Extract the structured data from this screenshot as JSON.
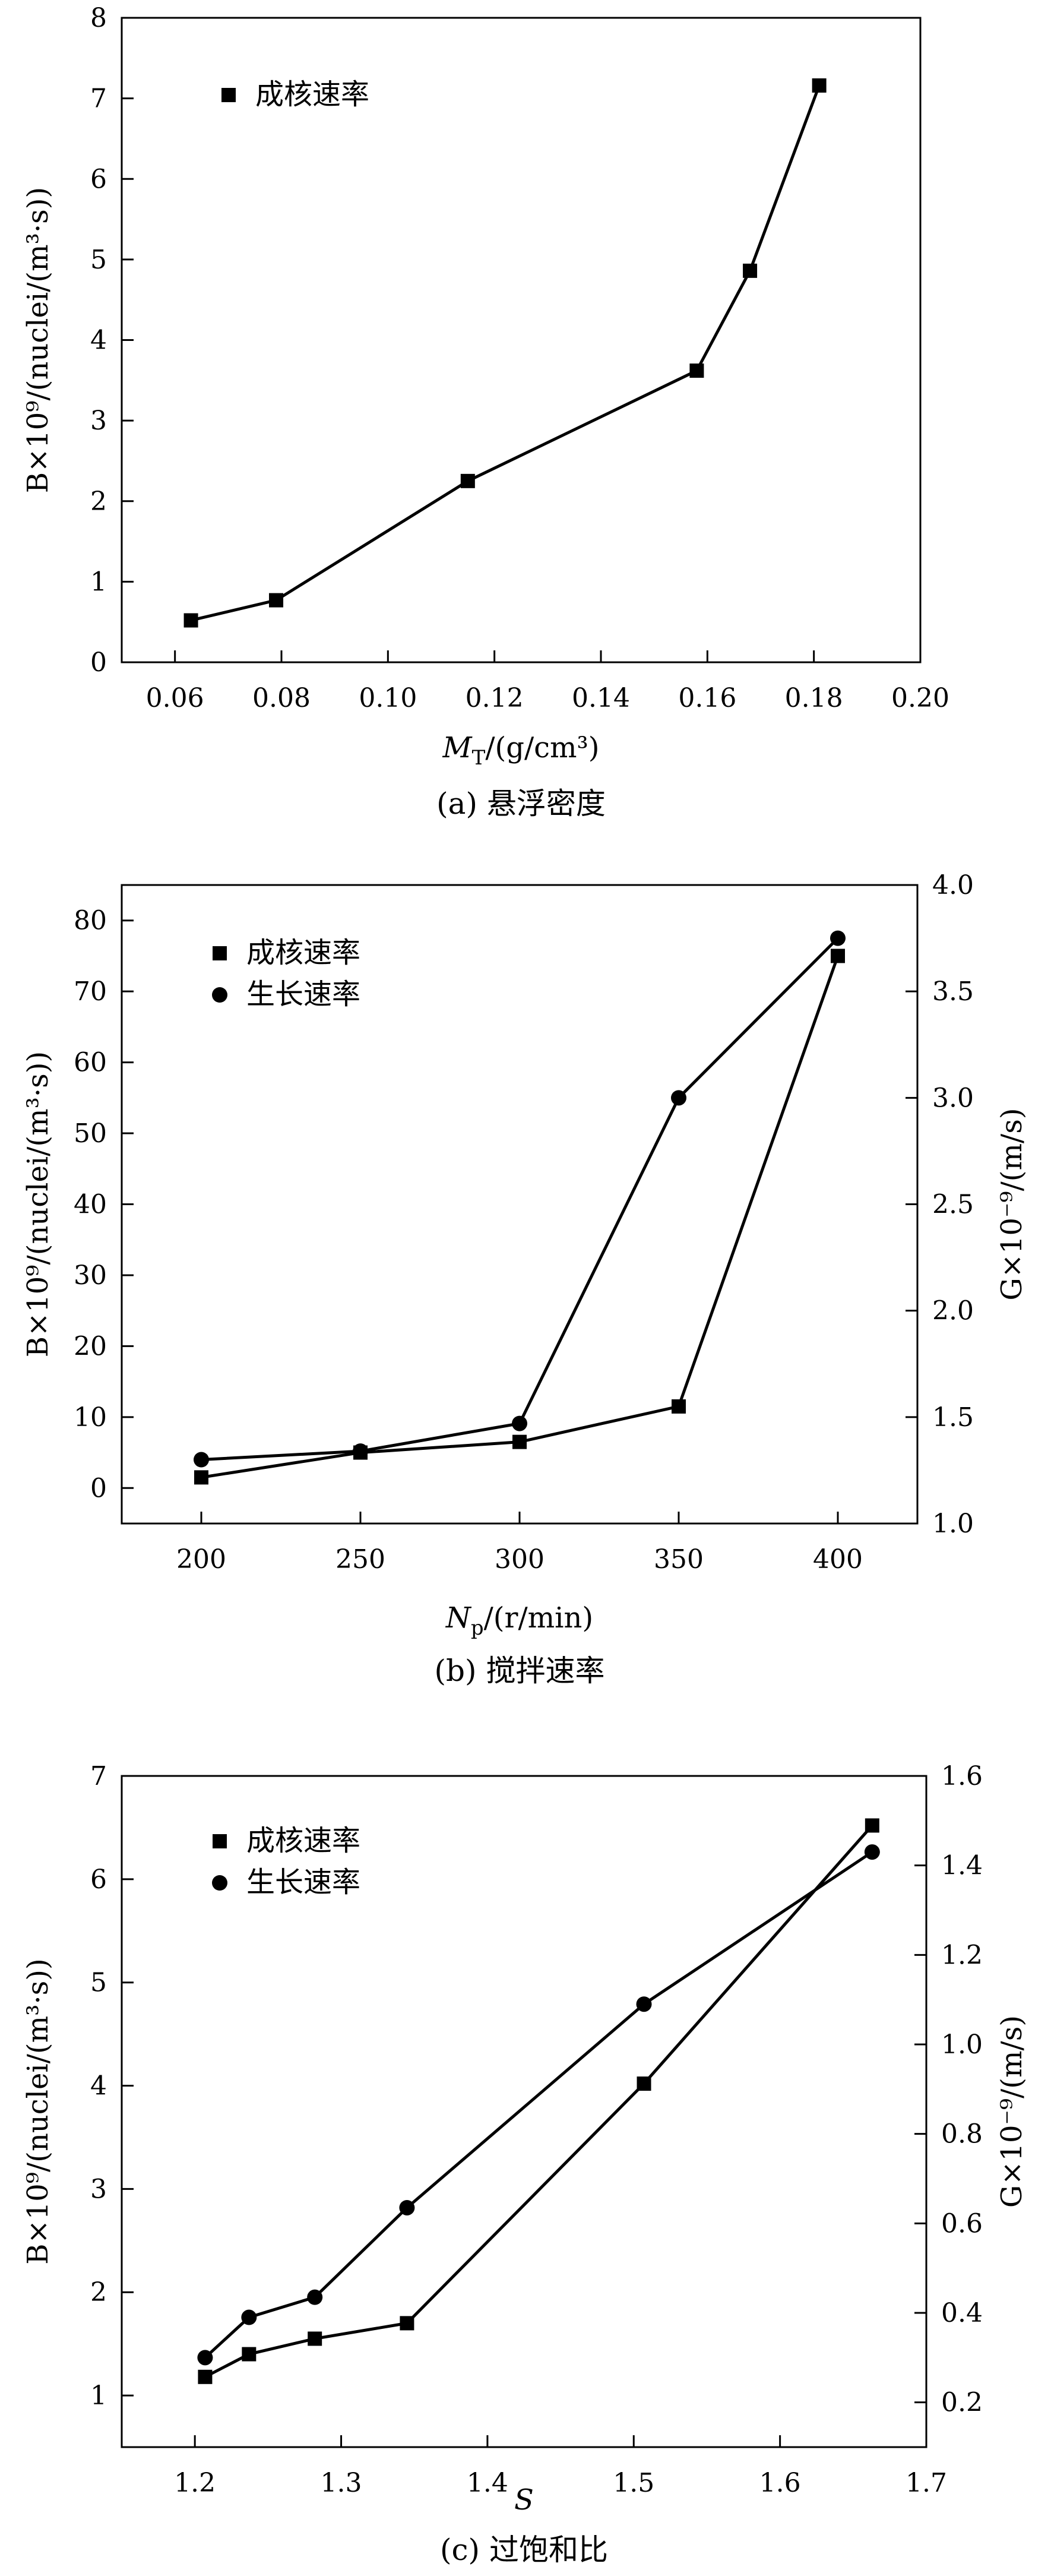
{
  "chart_data": [
    {
      "type": "line",
      "caption": "(a) 悬浮密度",
      "xlabel": {
        "var": "M",
        "sub": "T",
        "unit": "/(g/cm³)"
      },
      "ylabel_left": "B×10⁹/(nuclei/(m³·s))",
      "xlim": [
        0.05,
        0.2
      ],
      "ylim_left": [
        0,
        8
      ],
      "xticks": [
        "0.06",
        "0.08",
        "0.10",
        "0.12",
        "0.14",
        "0.16",
        "0.18",
        "0.20"
      ],
      "yticks_left": [
        "0",
        "1",
        "2",
        "3",
        "4",
        "5",
        "6",
        "7",
        "8"
      ],
      "legend": [
        "成核速率"
      ],
      "series": [
        {
          "name": "成核速率",
          "marker": "square",
          "axis": "left",
          "x": [
            0.063,
            0.079,
            0.115,
            0.158,
            0.168,
            0.181
          ],
          "values": [
            0.52,
            0.77,
            2.25,
            3.62,
            4.86,
            7.16
          ]
        }
      ]
    },
    {
      "type": "line",
      "caption": "(b) 搅拌速率",
      "xlabel": {
        "var": "N",
        "sub": "p",
        "unit": "/(r/min)"
      },
      "ylabel_left": "B×10⁹/(nuclei/(m³·s))",
      "ylabel_right": "G×10⁻⁹/(m/s)",
      "xlim": [
        175,
        425
      ],
      "ylim_left": [
        -5,
        85
      ],
      "ylim_right": [
        1.0,
        4.0
      ],
      "xticks": [
        "200",
        "250",
        "300",
        "350",
        "400"
      ],
      "yticks_left": [
        "0",
        "10",
        "20",
        "30",
        "40",
        "50",
        "60",
        "70",
        "80"
      ],
      "yticks_right": [
        "1.0",
        "1.5",
        "2.0",
        "2.5",
        "3.0",
        "3.5",
        "4.0"
      ],
      "legend": [
        "成核速率",
        "生长速率"
      ],
      "series": [
        {
          "name": "成核速率",
          "marker": "square",
          "axis": "left",
          "x": [
            200,
            250,
            300,
            350,
            400
          ],
          "values": [
            1.5,
            5.0,
            6.5,
            11.5,
            75.0
          ]
        },
        {
          "name": "生长速率",
          "marker": "circle",
          "axis": "right",
          "x": [
            200,
            250,
            300,
            350,
            400
          ],
          "values": [
            1.3,
            1.34,
            1.47,
            3.0,
            3.75
          ]
        }
      ]
    },
    {
      "type": "line",
      "caption": "(c) 过饱和比",
      "xlabel": {
        "var": "S",
        "sub": "",
        "unit": ""
      },
      "ylabel_left": "B×10⁹/(nuclei/(m³·s))",
      "ylabel_right": "G×10⁻⁹/(m/s)",
      "xlim": [
        1.15,
        1.7
      ],
      "ylim_left": [
        0.5,
        7
      ],
      "ylim_right": [
        0.1,
        1.6
      ],
      "xticks": [
        "1.2",
        "1.3",
        "1.4",
        "1.5",
        "1.6",
        "1.7"
      ],
      "yticks_left": [
        "1",
        "2",
        "3",
        "4",
        "5",
        "6",
        "7"
      ],
      "yticks_right": [
        "0.2",
        "0.4",
        "0.6",
        "0.8",
        "1.0",
        "1.2",
        "1.4",
        "1.6"
      ],
      "legend": [
        "成核速率",
        "生长速率"
      ],
      "series": [
        {
          "name": "成核速率",
          "marker": "square",
          "axis": "left",
          "x": [
            1.207,
            1.237,
            1.282,
            1.345,
            1.507,
            1.663
          ],
          "values": [
            1.18,
            1.4,
            1.55,
            1.7,
            4.02,
            6.52
          ]
        },
        {
          "name": "生长速率",
          "marker": "circle",
          "axis": "right",
          "x": [
            1.207,
            1.237,
            1.282,
            1.345,
            1.507,
            1.663
          ],
          "values": [
            0.3,
            0.39,
            0.435,
            0.635,
            1.09,
            1.43
          ]
        }
      ]
    }
  ]
}
